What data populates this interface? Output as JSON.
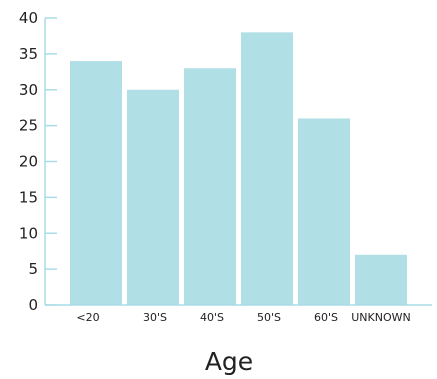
{
  "chart_data": {
    "type": "bar",
    "categories": [
      "<20",
      "30'S",
      "40'S",
      "50'S",
      "60'S",
      "UNKNOWN"
    ],
    "values": [
      34,
      30,
      33,
      38,
      26,
      7
    ],
    "xlabel": "Age",
    "ylabel": "",
    "ylim": [
      0,
      40
    ],
    "yticks": [
      0,
      5,
      10,
      15,
      20,
      25,
      30,
      35,
      40
    ],
    "grid": false,
    "legend": "none",
    "colors": {
      "bar": "#b0dfe5",
      "axis": "#a8dce6",
      "text": "#222222"
    }
  }
}
